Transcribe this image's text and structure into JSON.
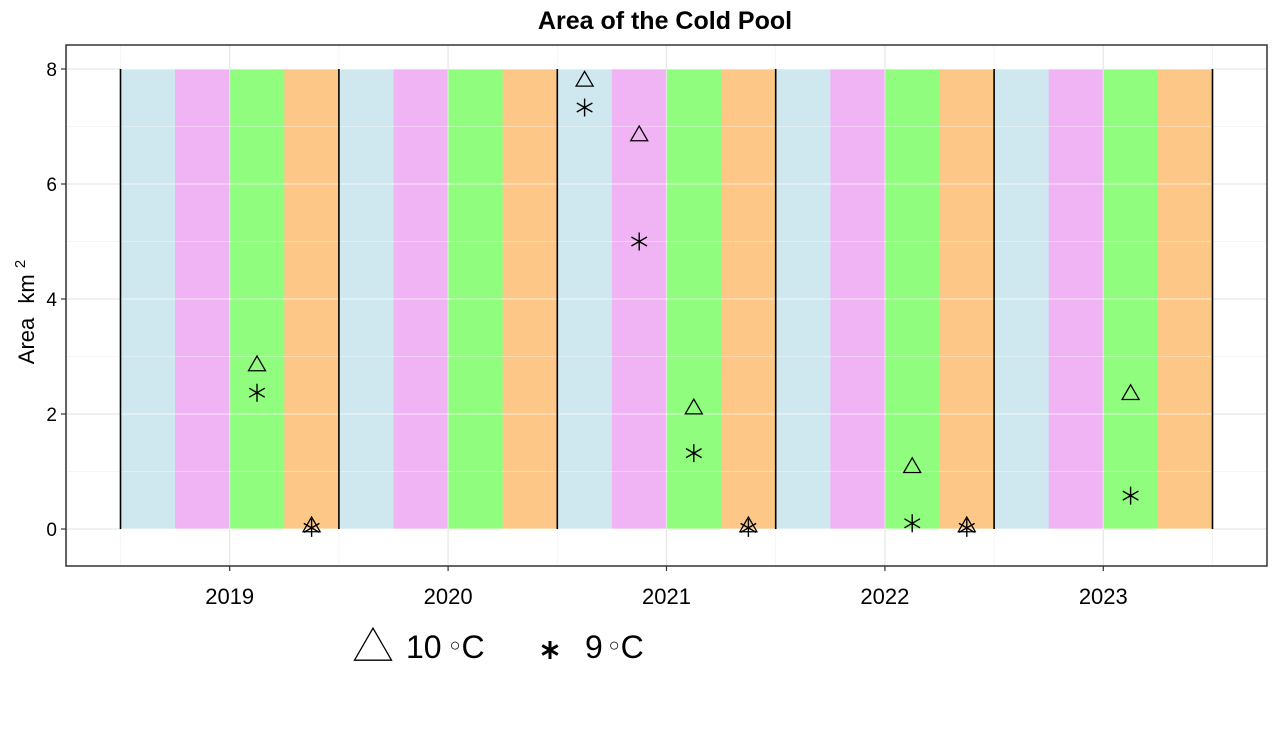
{
  "chart_data": {
    "type": "scatter",
    "title": "Area of the Cold Pool",
    "ylabel": "Area",
    "ylabel_unit": "km",
    "ylabel_unit_exp": "2",
    "xlabel": "",
    "ylim": [
      -0.65,
      8.4
    ],
    "yticks": [
      0,
      2,
      4,
      6,
      8
    ],
    "categories": [
      "2019",
      "2020",
      "2021",
      "2022",
      "2023"
    ],
    "season_band_colors": [
      "#cfe7ee",
      "#f0b4f4",
      "#90fd7f",
      "#fdc887"
    ],
    "grid": true,
    "legend_position": "bottom",
    "series": [
      {
        "name": "10",
        "unit": "C",
        "marker": "triangle",
        "points": [
          {
            "year": "2019",
            "band": 3,
            "value": 2.85
          },
          {
            "year": "2019",
            "band": 4,
            "value": 0.05
          },
          {
            "year": "2021",
            "band": 1,
            "value": 7.8
          },
          {
            "year": "2021",
            "band": 2,
            "value": 6.85
          },
          {
            "year": "2021",
            "band": 3,
            "value": 2.1
          },
          {
            "year": "2021",
            "band": 4,
            "value": 0.05
          },
          {
            "year": "2022",
            "band": 3,
            "value": 1.08
          },
          {
            "year": "2022",
            "band": 4,
            "value": 0.05
          },
          {
            "year": "2023",
            "band": 3,
            "value": 2.35
          }
        ]
      },
      {
        "name": "9",
        "unit": "C",
        "marker": "asterisk",
        "points": [
          {
            "year": "2019",
            "band": 3,
            "value": 2.37
          },
          {
            "year": "2019",
            "band": 4,
            "value": 0.02
          },
          {
            "year": "2021",
            "band": 1,
            "value": 7.33
          },
          {
            "year": "2021",
            "band": 2,
            "value": 5.0
          },
          {
            "year": "2021",
            "band": 3,
            "value": 1.32
          },
          {
            "year": "2021",
            "band": 4,
            "value": 0.02
          },
          {
            "year": "2022",
            "band": 3,
            "value": 0.1
          },
          {
            "year": "2022",
            "band": 4,
            "value": 0.02
          },
          {
            "year": "2023",
            "band": 3,
            "value": 0.58
          }
        ]
      }
    ],
    "legend": [
      {
        "symbol": "triangle",
        "number": "10",
        "unit": "C"
      },
      {
        "symbol": "asterisk",
        "number": "9",
        "unit": "C"
      }
    ]
  }
}
